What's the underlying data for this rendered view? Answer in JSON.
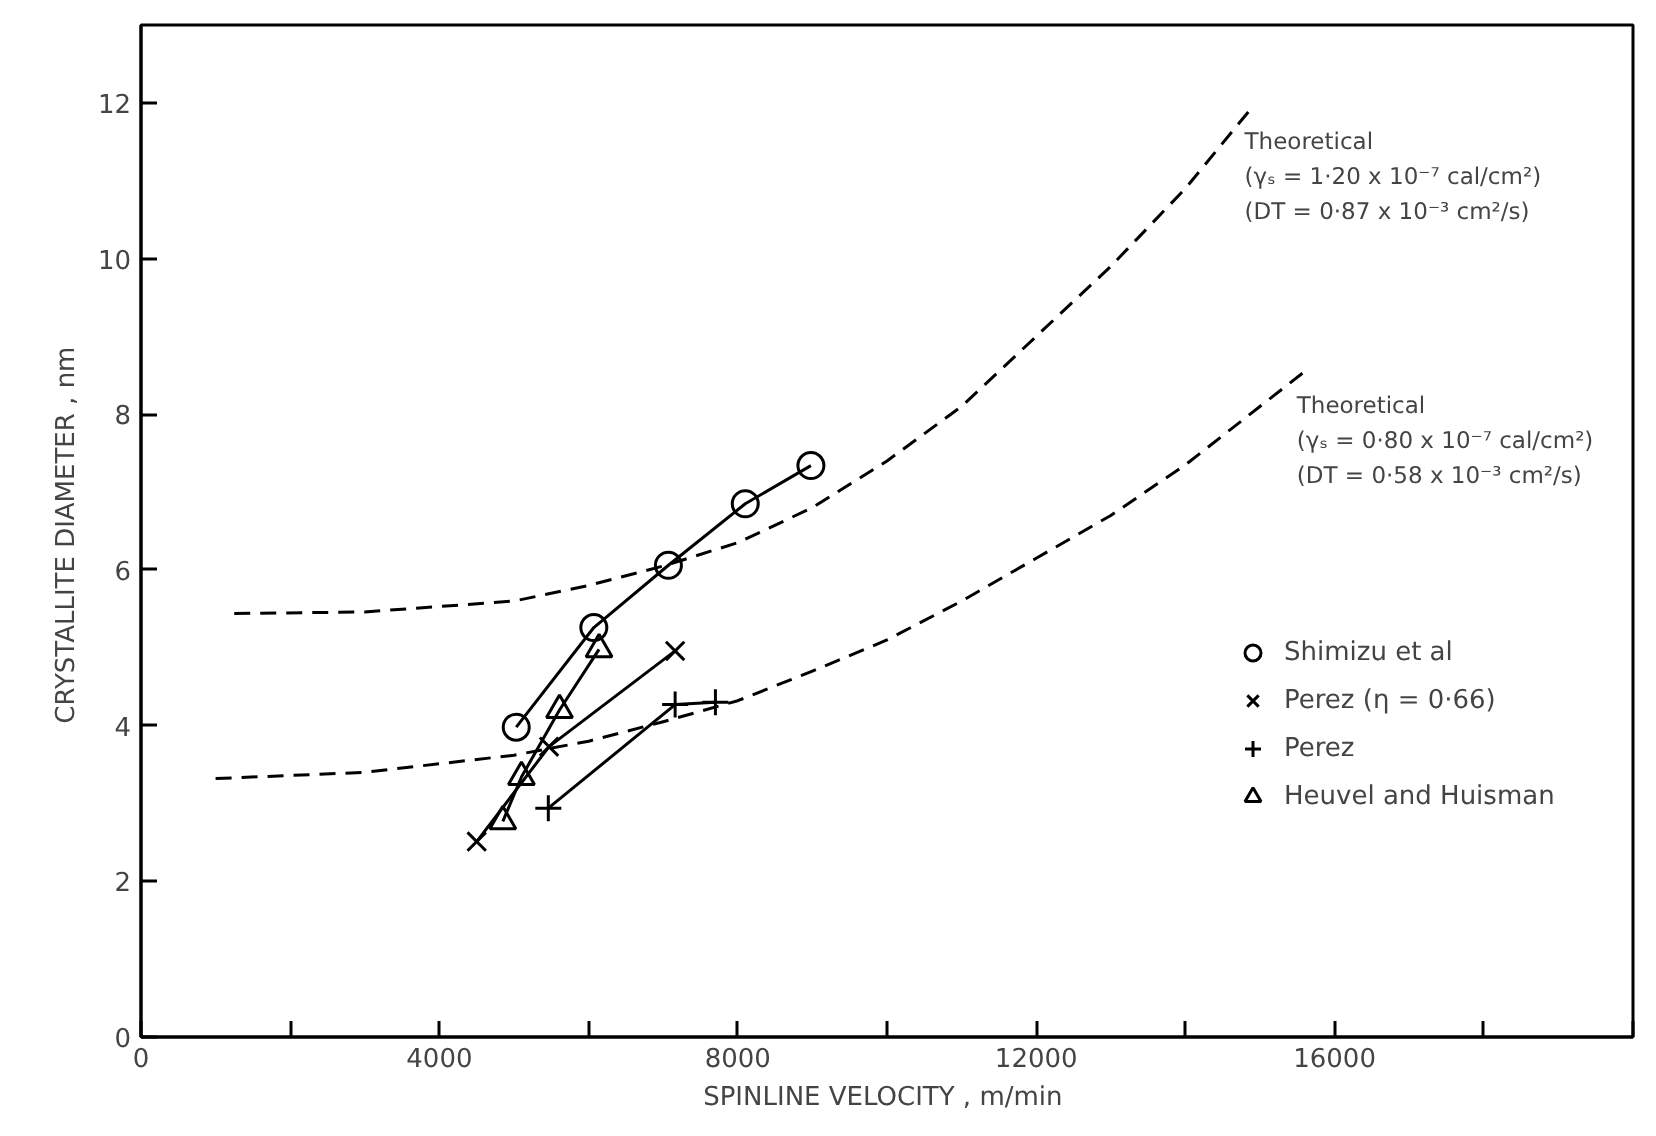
{
  "chart_data": {
    "type": "line",
    "xlabel": "SPINLINE  VELOCITY , m/min",
    "ylabel": "CRYSTALLITE  DIAMETER , nm",
    "xlim": [
      0,
      20000
    ],
    "ylim": [
      0,
      13
    ],
    "xticks": [
      0,
      {
        "value": 2000,
        "label": null
      },
      4000,
      {
        "value": 6000,
        "label": null
      },
      8000,
      {
        "value": 10000,
        "label": null
      },
      12000,
      {
        "value": 14000,
        "label": null
      },
      16000,
      {
        "value": 18000,
        "label": null
      },
      {
        "value": 20000,
        "label": null
      }
    ],
    "yticks": [
      0,
      2,
      4,
      6,
      8,
      10,
      12
    ],
    "grid": false,
    "legend": "bottom right",
    "series": [
      {
        "name": "Shimizu et al",
        "color": "#000000",
        "marker": "circle",
        "x": [
          5030,
          6070,
          7070,
          8100,
          8980
        ],
        "values": [
          3.98,
          5.26,
          6.06,
          6.85,
          7.34
        ]
      },
      {
        "name": "Perez (η = 0·66)",
        "color": "#000000",
        "marker": "x",
        "x": [
          4500,
          5470,
          7160
        ],
        "values": [
          2.51,
          3.73,
          4.96
        ]
      },
      {
        "name": "Perez",
        "color": "#000000",
        "marker": "cross",
        "x": [
          5460,
          7160,
          7700
        ],
        "values": [
          2.94,
          4.27,
          4.3
        ]
      },
      {
        "name": "Heuvel and Huisman",
        "color": "#000000",
        "marker": "triangle",
        "x": [
          4850,
          5100,
          5610,
          6140
        ],
        "values": [
          2.77,
          3.34,
          4.2,
          4.98
        ]
      },
      {
        "color": "#000000",
        "marker": "none",
        "line_style": "dashed",
        "x": [
          1250,
          3000,
          5000,
          6000,
          7000,
          8000,
          9000,
          10000,
          11000,
          12000,
          13000,
          14000,
          14900
        ],
        "values": [
          5.44,
          5.46,
          5.6,
          5.8,
          6.05,
          6.35,
          6.8,
          7.4,
          8.1,
          9.0,
          9.9,
          10.9,
          11.95
        ]
      },
      {
        "color": "#000000",
        "marker": "none",
        "line_style": "dashed",
        "x": [
          1000,
          3000,
          5000,
          6000,
          7000,
          8000,
          9000,
          10000,
          11000,
          12000,
          13000,
          14000,
          15600
        ],
        "values": [
          3.32,
          3.4,
          3.62,
          3.8,
          4.05,
          4.32,
          4.7,
          5.1,
          5.6,
          6.15,
          6.7,
          7.35,
          8.55
        ]
      }
    ],
    "annotations": [
      {
        "text": "Theoretical\n(γₛ = 1·20 x 10⁻⁷ cal/cm²)\n(DT = 0·87 x 10⁻³ cm²/s)",
        "x": 14900,
        "y": 11.95
      },
      {
        "text": "Theoretical\n(γₛ = 0·80 x 10⁻⁷ cal/cm²)\n(DT = 0·58 x 10⁻³ cm²/s)",
        "x": 15600,
        "y": 8.55
      }
    ]
  }
}
